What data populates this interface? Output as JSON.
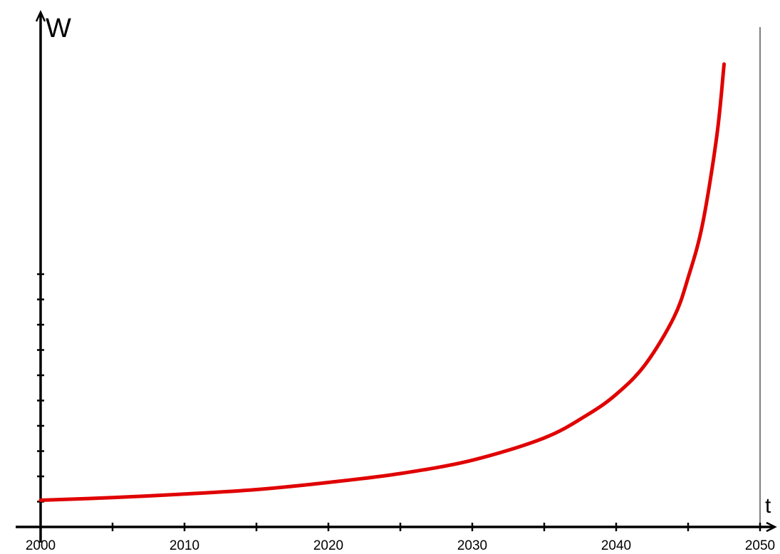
{
  "chart_data": {
    "type": "line",
    "xlabel": "t",
    "ylabel": "W",
    "x_tick_labels": [
      "2000",
      "2010",
      "2020",
      "2030",
      "2040",
      "2050"
    ],
    "xlim": [
      2000,
      2050
    ],
    "asymptote_x": 2050,
    "grid": false,
    "series": [
      {
        "color": "#e00000",
        "x": [
          2000,
          2005,
          2010,
          2015,
          2020,
          2025,
          2030,
          2035,
          2038,
          2040,
          2042,
          2044,
          2045,
          2046,
          2047,
          2047.5
        ],
        "y": [
          0.3,
          0.33,
          0.37,
          0.42,
          0.5,
          0.6,
          0.75,
          1.0,
          1.26,
          1.49,
          1.82,
          2.35,
          2.8,
          3.4,
          4.4,
          5.2
        ]
      }
    ],
    "ylim": [
      0,
      5.6
    ]
  }
}
